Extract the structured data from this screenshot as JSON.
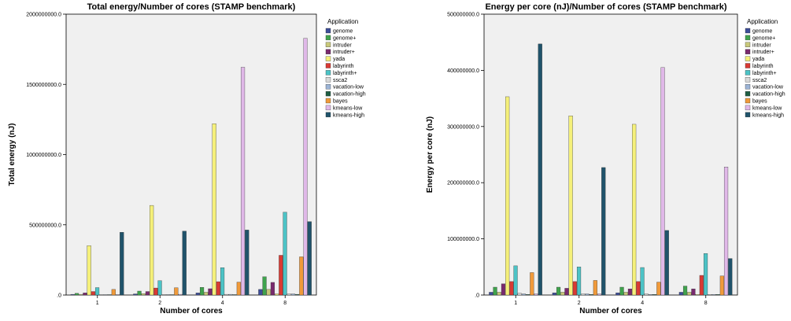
{
  "chart_data": [
    {
      "type": "bar",
      "title": "Total energy/Number of cores (STAMP benchmark)",
      "xlabel": "Number of cores",
      "ylabel": "Total energy (nJ)",
      "ylim": [
        0,
        2000000000
      ],
      "yticks": [
        "2000000000.0",
        "1500000000.0",
        "1000000000.0",
        "500000000.0",
        ".0"
      ],
      "ytick_values": [
        2000000000,
        1500000000,
        1000000000,
        500000000,
        0
      ],
      "grid": false,
      "legend_title": "Application",
      "legend_position": "right",
      "categories": [
        "1",
        "2",
        "4",
        "8"
      ],
      "series": [
        {
          "name": "genome",
          "color": "#3d4e99",
          "values": [
            5000000,
            8000000,
            15000000,
            40000000
          ]
        },
        {
          "name": "genome+",
          "color": "#3fa34d",
          "values": [
            12000000,
            28000000,
            55000000,
            130000000
          ]
        },
        {
          "name": "intruder",
          "color": "#c8c87a",
          "values": [
            5000000,
            10000000,
            20000000,
            40000000
          ]
        },
        {
          "name": "intruder+",
          "color": "#7a2a6e",
          "values": [
            15000000,
            25000000,
            45000000,
            90000000
          ]
        },
        {
          "name": "yada",
          "color": "#f5f07a",
          "values": [
            352000000,
            638000000,
            1220000000,
            8000000
          ]
        },
        {
          "name": "labyrinth",
          "color": "#d93a33",
          "values": [
            25000000,
            50000000,
            95000000,
            283000000
          ]
        },
        {
          "name": "labyrinth+",
          "color": "#4cc3c6",
          "values": [
            53000000,
            102000000,
            195000000,
            590000000
          ]
        },
        {
          "name": "ssca2",
          "color": "#d9d9d9",
          "values": [
            2000000,
            3000000,
            5000000,
            8000000
          ]
        },
        {
          "name": "vacation-low",
          "color": "#9cb4d6",
          "values": [
            2000000,
            3000000,
            5000000,
            8000000
          ]
        },
        {
          "name": "vacation-high",
          "color": "#1f5e44",
          "values": [
            1000000,
            2000000,
            3000000,
            5000000
          ]
        },
        {
          "name": "bayes",
          "color": "#f09a3a",
          "values": [
            40000000,
            52000000,
            92000000,
            272000000
          ]
        },
        {
          "name": "kmeans-low",
          "color": "#e0b8e8",
          "values": [
            3000000,
            5000000,
            1622000000,
            1828000000
          ]
        },
        {
          "name": "kmeans-high",
          "color": "#20536b",
          "values": [
            447000000,
            455000000,
            463000000,
            523000000
          ]
        }
      ]
    },
    {
      "type": "bar",
      "title": "Energy per core (nJ)/Number of cores (STAMP benchmark)",
      "xlabel": "Number of cores",
      "ylabel": "Energy per core (nJ)",
      "ylim": [
        0,
        500000000
      ],
      "yticks": [
        "500000000.0",
        "400000000.0",
        "300000000.0",
        "200000000.0",
        "100000000.0",
        ".0"
      ],
      "ytick_values": [
        500000000,
        400000000,
        300000000,
        200000000,
        100000000,
        0
      ],
      "grid": false,
      "legend_title": "Application",
      "legend_position": "right",
      "categories": [
        "1",
        "2",
        "4",
        "8"
      ],
      "series": [
        {
          "name": "genome",
          "color": "#3d4e99",
          "values": [
            5000000,
            4000000,
            4000000,
            5000000
          ]
        },
        {
          "name": "genome+",
          "color": "#3fa34d",
          "values": [
            14000000,
            14000000,
            14000000,
            16000000
          ]
        },
        {
          "name": "intruder",
          "color": "#c8c87a",
          "values": [
            5000000,
            5000000,
            5000000,
            5000000
          ]
        },
        {
          "name": "intruder+",
          "color": "#7a2a6e",
          "values": [
            20000000,
            12000000,
            11000000,
            11000000
          ]
        },
        {
          "name": "yada",
          "color": "#f5f07a",
          "values": [
            353000000,
            319000000,
            304000000,
            1000000
          ]
        },
        {
          "name": "labyrinth",
          "color": "#d93a33",
          "values": [
            24000000,
            24000000,
            24000000,
            35000000
          ]
        },
        {
          "name": "labyrinth+",
          "color": "#4cc3c6",
          "values": [
            52000000,
            50000000,
            49000000,
            74000000
          ]
        },
        {
          "name": "ssca2",
          "color": "#d9d9d9",
          "values": [
            3000000,
            2000000,
            2000000,
            1000000
          ]
        },
        {
          "name": "vacation-low",
          "color": "#9cb4d6",
          "values": [
            2000000,
            2000000,
            1000000,
            1000000
          ]
        },
        {
          "name": "vacation-high",
          "color": "#1f5e44",
          "values": [
            1000000,
            1000000,
            1000000,
            1000000
          ]
        },
        {
          "name": "bayes",
          "color": "#f09a3a",
          "values": [
            40000000,
            26000000,
            23000000,
            34000000
          ]
        },
        {
          "name": "kmeans-low",
          "color": "#e0b8e8",
          "values": [
            2000000,
            2000000,
            405000000,
            228000000
          ]
        },
        {
          "name": "kmeans-high",
          "color": "#20536b",
          "values": [
            447000000,
            227000000,
            115000000,
            65000000
          ]
        }
      ]
    }
  ]
}
